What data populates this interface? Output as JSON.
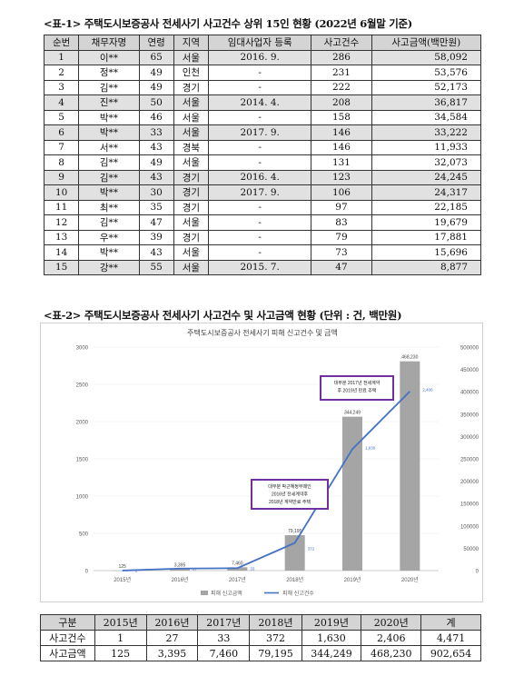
{
  "table1": {
    "caption": "<표-1> 주택도시보증공사 전세사기 사고건수 상위 15인 현황 (2022년 6월말 기준)",
    "headers": [
      "순번",
      "채무자명",
      "연령",
      "지역",
      "임대사업자 등록",
      "사고건수",
      "사고금액(백만원)"
    ],
    "rows": [
      [
        "1",
        "이**",
        "65",
        "서울",
        "2016. 9.",
        "286",
        "58,092"
      ],
      [
        "2",
        "정**",
        "49",
        "인천",
        "-",
        "231",
        "53,576"
      ],
      [
        "3",
        "김**",
        "49",
        "경기",
        "-",
        "222",
        "52,173"
      ],
      [
        "4",
        "진**",
        "50",
        "서울",
        "2014. 4.",
        "208",
        "36,817"
      ],
      [
        "5",
        "박**",
        "46",
        "서울",
        "-",
        "158",
        "34,584"
      ],
      [
        "6",
        "박**",
        "33",
        "서울",
        "2017. 9.",
        "146",
        "33,222"
      ],
      [
        "7",
        "서**",
        "43",
        "경북",
        "-",
        "146",
        "11,933"
      ],
      [
        "8",
        "김**",
        "49",
        "서울",
        "-",
        "131",
        "32,073"
      ],
      [
        "9",
        "김**",
        "43",
        "경기",
        "2016. 4.",
        "123",
        "24,245"
      ],
      [
        "10",
        "박**",
        "30",
        "경기",
        "2017. 9.",
        "106",
        "24,317"
      ],
      [
        "11",
        "최**",
        "35",
        "경기",
        "-",
        "97",
        "22,185"
      ],
      [
        "12",
        "김**",
        "47",
        "서울",
        "-",
        "83",
        "19,679"
      ],
      [
        "13",
        "우**",
        "39",
        "경기",
        "-",
        "79",
        "17,881"
      ],
      [
        "14",
        "박**",
        "43",
        "서울",
        "-",
        "73",
        "15,696"
      ],
      [
        "15",
        "강**",
        "55",
        "서울",
        "2015. 7.",
        "47",
        "8,877"
      ]
    ]
  },
  "section2": {
    "caption": "<표-2> 주택도시보증공사 전세사기 사고건수 및 사고금액 현황 (단위 : 건, 백만원)"
  },
  "chart_data": {
    "type": "bar",
    "title": "주택도시보증공사 전세사기 피해 신고건수 및 금액",
    "categories": [
      "2015년",
      "2016년",
      "2017년",
      "2018년",
      "2019년",
      "2020년"
    ],
    "series": [
      {
        "name": "피해 신고금액",
        "kind": "bar",
        "axis": "right",
        "values": [
          125,
          3395,
          7460,
          79195,
          344249,
          468230
        ],
        "labels": [
          "125",
          "3,395",
          "7,460",
          "79,195",
          "344,249",
          "468,230"
        ]
      },
      {
        "name": "피해 신고건수",
        "kind": "line",
        "axis": "left",
        "values": [
          1,
          27,
          33,
          372,
          1630,
          2406
        ],
        "labels": [
          "1",
          "27",
          "33",
          "372",
          "1,630",
          "2,406"
        ]
      }
    ],
    "ylim_left": [
      0,
      3000
    ],
    "yticks_left": [
      "0",
      "500",
      "1000",
      "1500",
      "2000",
      "2500",
      "3000"
    ],
    "ylim_right": [
      0,
      500000
    ],
    "yticks_right": [
      "0",
      "50000",
      "100000",
      "150000",
      "200000",
      "250000",
      "300000",
      "350000",
      "400000",
      "450000",
      "500000"
    ],
    "annotations": [
      {
        "lines": [
          "대부분 박근혜정부때인",
          "2016년 전세계약후",
          "2018년 계약만료 주택"
        ]
      },
      {
        "lines": [
          "대부분 2017년 전세계약",
          "후 2019년 만료 주택"
        ]
      }
    ],
    "legend": "bottom",
    "colors": {
      "bar": "#a5a5a5",
      "line": "#4472c4",
      "annotation_border": "#7030a0"
    }
  },
  "table2": {
    "headers": [
      "구분",
      "2015년",
      "2016년",
      "2017년",
      "2018년",
      "2019년",
      "2020년",
      "계"
    ],
    "rows": [
      [
        "사고건수",
        "1",
        "27",
        "33",
        "372",
        "1,630",
        "2,406",
        "4,471"
      ],
      [
        "사고금액",
        "125",
        "3,395",
        "7,460",
        "79,195",
        "344,249",
        "468,230",
        "902,654"
      ]
    ]
  }
}
